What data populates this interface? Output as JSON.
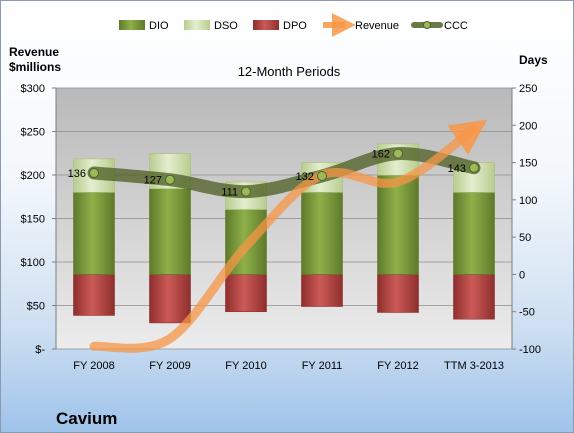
{
  "chart_data": {
    "type": "combo",
    "title": "12-Month Periods",
    "company": "Cavium",
    "left_axis": {
      "label_line1": "Revenue",
      "label_line2": "$millions",
      "range": [
        0,
        300
      ],
      "ticks": [
        "$-",
        "$50",
        "$100",
        "$150",
        "$200",
        "$250",
        "$300"
      ]
    },
    "right_axis": {
      "label": "Days",
      "range": [
        -100,
        250
      ],
      "ticks": [
        "-100",
        "-50",
        "0",
        "50",
        "100",
        "150",
        "200",
        "250"
      ]
    },
    "categories": [
      "FY 2008",
      "FY 2009",
      "FY 2010",
      "FY 2011",
      "FY 2012",
      "TTM 3-2013"
    ],
    "legend": [
      "DIO",
      "DSO",
      "DPO",
      "Revenue",
      "CCC"
    ],
    "series": [
      {
        "name": "DIO",
        "axis": "right",
        "kind": "stacked-bar",
        "values": [
          110,
          115,
          87,
          110,
          133,
          110
        ],
        "color": "#77933c"
      },
      {
        "name": "DSO",
        "axis": "right",
        "kind": "stacked-bar",
        "values": [
          45,
          47,
          37,
          40,
          42,
          40
        ],
        "color": "#d7e4bd"
      },
      {
        "name": "DPO",
        "axis": "right",
        "kind": "negative-bar",
        "values": [
          -55,
          -65,
          -50,
          -43,
          -51,
          -60
        ],
        "color": "#c0504d"
      },
      {
        "name": "Revenue",
        "axis": "left",
        "kind": "line",
        "values": [
          3,
          12,
          118,
          200,
          192,
          253
        ],
        "color": "#f79646"
      },
      {
        "name": "CCC",
        "axis": "right",
        "kind": "line",
        "values": [
          136,
          127,
          111,
          132,
          162,
          143
        ],
        "color": "#4f6228"
      }
    ],
    "data_labels": [
      "136",
      "127",
      "111",
      "132",
      "162",
      "143"
    ],
    "grid": true,
    "legend_position": "top"
  }
}
